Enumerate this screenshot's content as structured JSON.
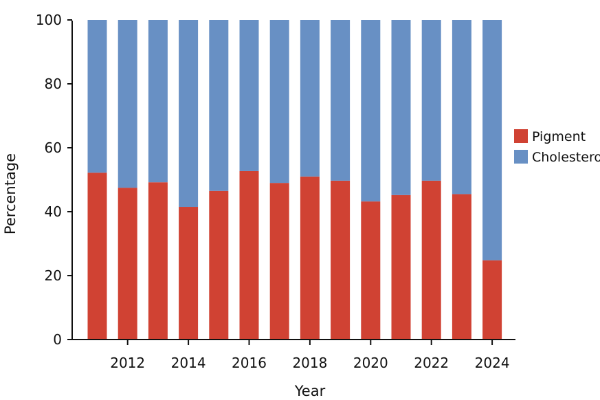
{
  "chart_data": {
    "type": "bar",
    "stacked": true,
    "title": "",
    "xlabel": "Year",
    "ylabel": "Percentage",
    "x": [
      2011,
      2012,
      2013,
      2014,
      2015,
      2016,
      2017,
      2018,
      2019,
      2020,
      2021,
      2022,
      2023,
      2024
    ],
    "series": [
      {
        "name": "Pigment",
        "color": "#d04233",
        "values": [
          52.2,
          47.5,
          49.2,
          41.5,
          46.5,
          52.7,
          49.0,
          51.0,
          49.7,
          43.2,
          45.2,
          49.7,
          45.5,
          24.8
        ]
      },
      {
        "name": "Cholesterol",
        "color": "#6890c4",
        "values": [
          47.8,
          52.5,
          50.8,
          58.5,
          53.5,
          47.3,
          51.0,
          49.0,
          50.3,
          56.8,
          54.8,
          50.3,
          54.5,
          75.2
        ]
      }
    ],
    "ylim": [
      0,
      100
    ],
    "yticks": [
      0,
      20,
      40,
      60,
      80,
      100
    ],
    "xticks": [
      2012,
      2014,
      2016,
      2018,
      2020,
      2022,
      2024
    ],
    "legend": {
      "position": "right"
    },
    "grid": false
  }
}
